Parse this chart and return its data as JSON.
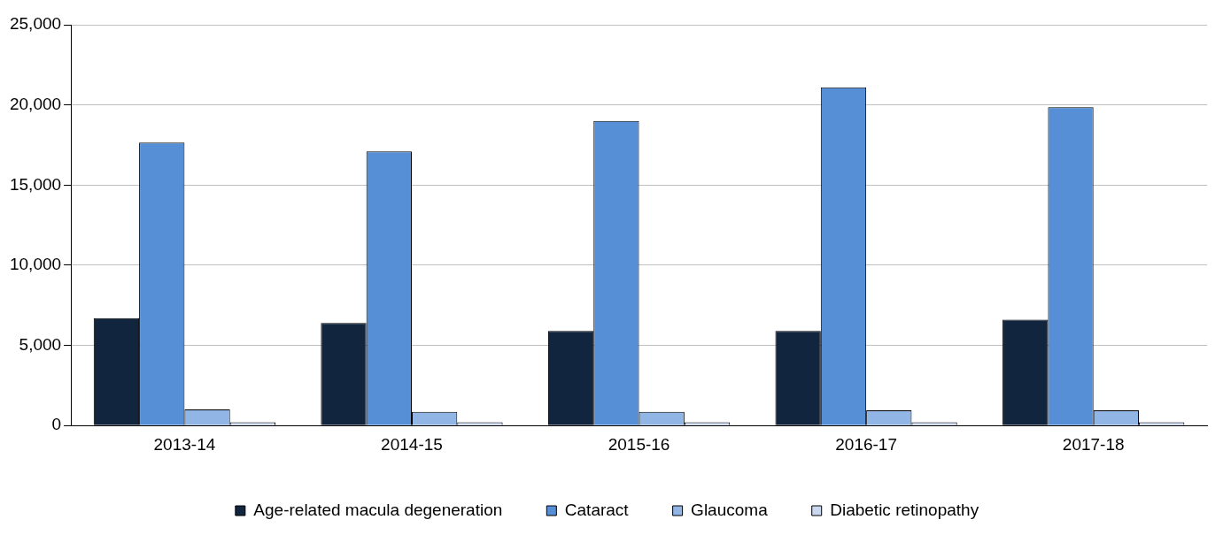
{
  "chart_data": {
    "type": "bar",
    "categories": [
      "2013-14",
      "2014-15",
      "2015-16",
      "2016-17",
      "2017-18"
    ],
    "series": [
      {
        "name": "Age-related macula degeneration",
        "color": "#12253f",
        "values": [
          6700,
          6400,
          5900,
          5900,
          6600
        ]
      },
      {
        "name": "Cataract",
        "color": "#568fd6",
        "values": [
          17650,
          17100,
          19000,
          21100,
          19850
        ]
      },
      {
        "name": "Glaucoma",
        "color": "#91b5e5",
        "values": [
          1000,
          850,
          850,
          950,
          950
        ]
      },
      {
        "name": "Diabetic retinopathy",
        "color": "#c9d8ef",
        "values": [
          200,
          200,
          200,
          200,
          200
        ]
      }
    ],
    "ylim": [
      0,
      25000
    ],
    "yticks": [
      0,
      {
        "value": 5000,
        "label": "5,000"
      },
      {
        "value": 10000,
        "label": "10,000"
      },
      {
        "value": 15000,
        "label": "15,000"
      },
      {
        "value": 20000,
        "label": "20,000"
      },
      {
        "value": 25000,
        "label": "25,000"
      }
    ],
    "grid": "y",
    "legend": "bottom"
  }
}
